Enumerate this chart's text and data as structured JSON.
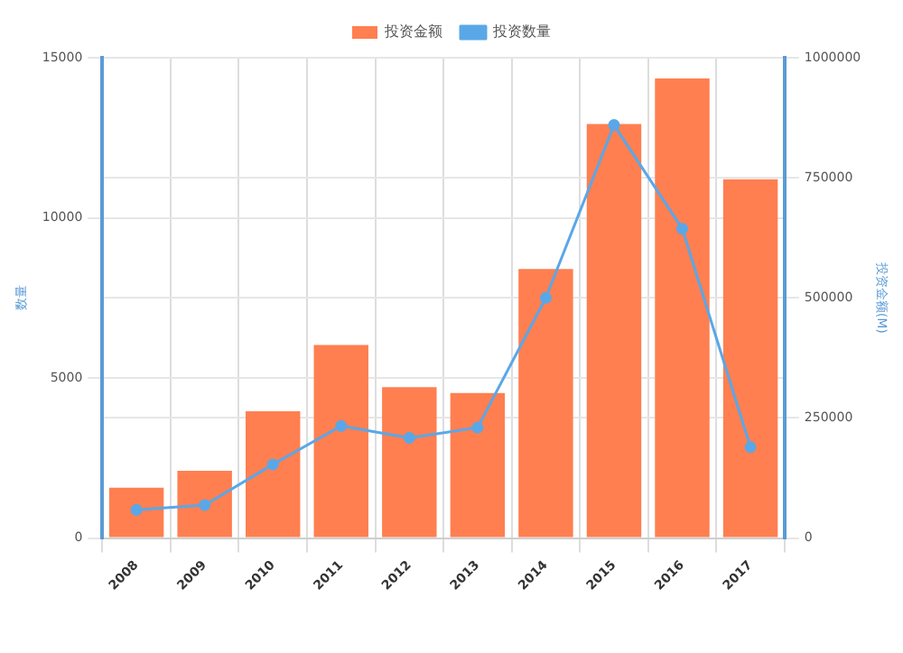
{
  "chart_data": {
    "type": "bar",
    "categories": [
      "2008",
      "2009",
      "2010",
      "2011",
      "2012",
      "2013",
      "2014",
      "2015",
      "2016",
      "2017"
    ],
    "series": [
      {
        "name": "投资金额",
        "axis": "y2",
        "color": "#ff7f50",
        "values": [
          105000,
          140000,
          264000,
          402000,
          314000,
          302000,
          560000,
          862000,
          957000,
          747000
        ]
      },
      {
        "name": "投资数量",
        "type": "line",
        "axis": "y",
        "color": "#5aa7e8",
        "marker": "circle",
        "values": [
          880,
          1030,
          2300,
          3500,
          3130,
          3450,
          7500,
          12900,
          9660,
          2840
        ]
      }
    ],
    "ylabel": "数量",
    "y2label": "投资金额(M)",
    "ylim": [
      0,
      15000
    ],
    "yticks": [
      0,
      5000,
      10000,
      15000
    ],
    "y2lim": [
      0,
      1000000
    ],
    "y2ticks": [
      0,
      250000,
      500000,
      750000,
      1000000
    ],
    "grid": true,
    "legend": "top"
  }
}
